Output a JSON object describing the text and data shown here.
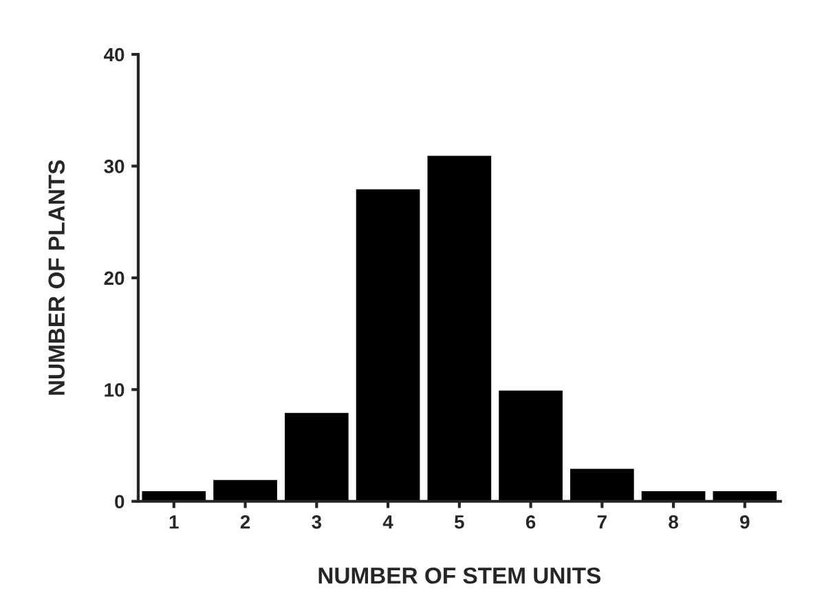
{
  "chart_data": {
    "type": "bar",
    "xlabel": "NUMBER OF STEM UNITS",
    "ylabel": "NUMBER OF PLANTS",
    "categories": [
      "1",
      "2",
      "3",
      "4",
      "5",
      "6",
      "7",
      "8",
      "9"
    ],
    "values": [
      1,
      2,
      8,
      28,
      31,
      10,
      3,
      1,
      1
    ],
    "color": "#000000",
    "ylim": [
      0,
      40
    ],
    "yticks": [
      0,
      10,
      20,
      30,
      40
    ],
    "grid": false
  }
}
